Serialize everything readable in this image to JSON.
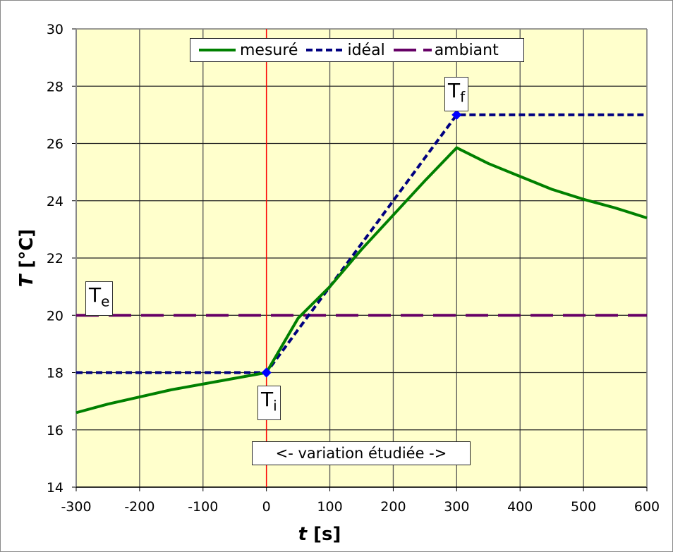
{
  "chart_data": {
    "type": "line",
    "title": "",
    "xlabel": "t  [s]",
    "ylabel": "T  [°C]",
    "xlim": [
      -300,
      600
    ],
    "ylim": [
      14,
      30
    ],
    "x_ticks": [
      "-300",
      "-200",
      "-100",
      "0",
      "100",
      "200",
      "300",
      "400",
      "500",
      "600"
    ],
    "y_ticks": [
      "14",
      "16",
      "18",
      "20",
      "22",
      "24",
      "26",
      "28",
      "30"
    ],
    "grid": true,
    "legend_position": "top-center",
    "series": [
      {
        "name": "mesuré",
        "color": "#008000",
        "style": "solid",
        "x": [
          -300,
          -250,
          -200,
          -150,
          -100,
          -50,
          0,
          50,
          100,
          150,
          200,
          250,
          300,
          350,
          400,
          450,
          500,
          550,
          600
        ],
        "y": [
          16.6,
          16.9,
          17.15,
          17.4,
          17.6,
          17.8,
          18.0,
          19.9,
          21.0,
          22.3,
          23.5,
          24.7,
          25.85,
          25.3,
          24.85,
          24.4,
          24.05,
          23.75,
          23.4
        ]
      },
      {
        "name": "idéal",
        "color": "#000080",
        "style": "dashed",
        "x": [
          -300,
          0,
          300,
          600
        ],
        "y": [
          18,
          18,
          27,
          27
        ]
      },
      {
        "name": "ambiant",
        "color": "#660066",
        "style": "long-dash",
        "x": [
          -300,
          600
        ],
        "y": [
          20,
          20
        ]
      }
    ],
    "annotations": [
      {
        "text": "T_i",
        "x": 0,
        "y": 18
      },
      {
        "text": "T_f",
        "x": 300,
        "y": 27
      },
      {
        "text": "T_e",
        "x": -300,
        "y": 20
      },
      {
        "text": "<- variation étudiée ->",
        "x": 150,
        "y": 15
      }
    ],
    "vertical_marker": {
      "x": 0,
      "color": "#ff0000"
    }
  },
  "legend": {
    "items": [
      {
        "label": "mesuré"
      },
      {
        "label": "idéal"
      },
      {
        "label": "ambiant"
      }
    ]
  },
  "labels": {
    "ti_main": "T",
    "ti_sub": "i",
    "tf_main": "T",
    "tf_sub": "f",
    "te_main": "T",
    "te_sub": "e",
    "variation": "<- variation étudiée ->"
  },
  "axes": {
    "xlabel_var": "t",
    "xlabel_unit": "[s]",
    "ylabel_var": "T",
    "ylabel_unit": "[°C]"
  },
  "colors": {
    "plot_bg": "#ffffcc",
    "measured": "#008000",
    "ideal": "#000080",
    "ambient": "#660066",
    "marker": "#ff0000"
  }
}
